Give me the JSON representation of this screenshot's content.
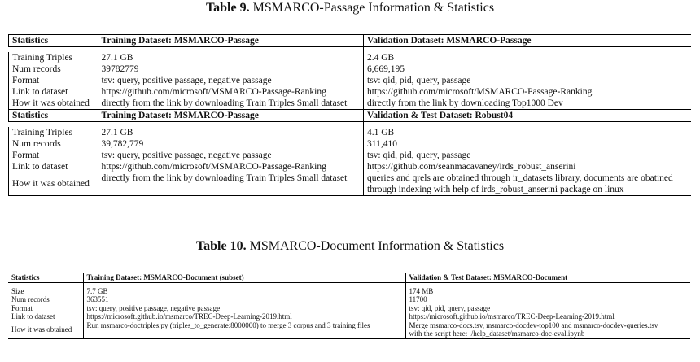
{
  "table9": {
    "caption_label": "Table 9.",
    "caption_text": "MSMARCO-Passage Information & Statistics",
    "section1": {
      "headers": [
        "Statistics",
        "Training Dataset: MSMARCO-Passage",
        "Validation Dataset: MSMARCO-Passage"
      ],
      "rows": [
        [
          "Training Triples",
          "27.1 GB",
          "2.4 GB"
        ],
        [
          "Num records",
          "39782779",
          "6,669,195"
        ],
        [
          "Format",
          "tsv: query, positive passage, negative passage",
          "tsv: qid, pid, query, passage"
        ],
        [
          "Link to dataset",
          "https://github.com/microsoft/MSMARCO-Passage-Ranking",
          "https://github.com/microsoft/MSMARCO-Passage-Ranking"
        ],
        [
          "How it was obtained",
          "directly from the link by downloading Train Triples Small dataset",
          "directly from the link by downloading Top1000 Dev"
        ]
      ]
    },
    "section2": {
      "headers": [
        "Statistics",
        "Training Dataset: MSMARCO-Passage",
        "Validation & Test Dataset: Robust04"
      ],
      "rows": [
        [
          "Training Triples",
          "27.1 GB",
          "4.1 GB"
        ],
        [
          "Num records",
          "39,782,779",
          "311,410"
        ],
        [
          "Format",
          "tsv: query, positive passage, negative passage",
          "tsv: qid, pid, query, passage"
        ],
        [
          "Link to dataset",
          "https://github.com/microsoft/MSMARCO-Passage-Ranking",
          "https://github.com/seanmacavaney/irds_robust_anserini"
        ]
      ],
      "last_row": {
        "label": "How it was obtained",
        "train": "directly from the link by downloading Train Triples Small dataset",
        "val_line1": "queries and qrels are obtained through ir_datasets library, documents are obatined",
        "val_line2": "through indexing with help of irds_robust_anserini package on linux"
      }
    }
  },
  "table10": {
    "caption_label": "Table 10.",
    "caption_text": "MSMARCO-Document Information & Statistics",
    "headers": [
      "Statistics",
      "Training Dataset: MSMARCO-Document (subset)",
      "Validation & Test Dataset: MSMARCO-Document"
    ],
    "rows": [
      [
        "Size",
        "7.7 GB",
        "174 MB"
      ],
      [
        "Num records",
        "363551",
        "11700"
      ],
      [
        "Format",
        "tsv: query, positive passage, negative passage",
        "tsv: qid, pid, query, passage"
      ],
      [
        "Link to dataset",
        "https://microsoft.github.io/msmarco/TREC-Deep-Learning-2019.html",
        "https://microsoft.github.io/msmarco/TREC-Deep-Learning-2019.html"
      ]
    ],
    "last_row": {
      "label": "How it was obtained",
      "train": "Run msmarco-doctriples.py (triples_to_generate:8000000) to merge 3 corpus and 3 training files",
      "val_line1": "Merge msmarco-docs.tsv, msmarco-docdev-top100 and msmarco-docdev-queries.tsv",
      "val_line2": "with the script here: ./help_dataset/msmarco-doc-eval.ipynb"
    }
  }
}
